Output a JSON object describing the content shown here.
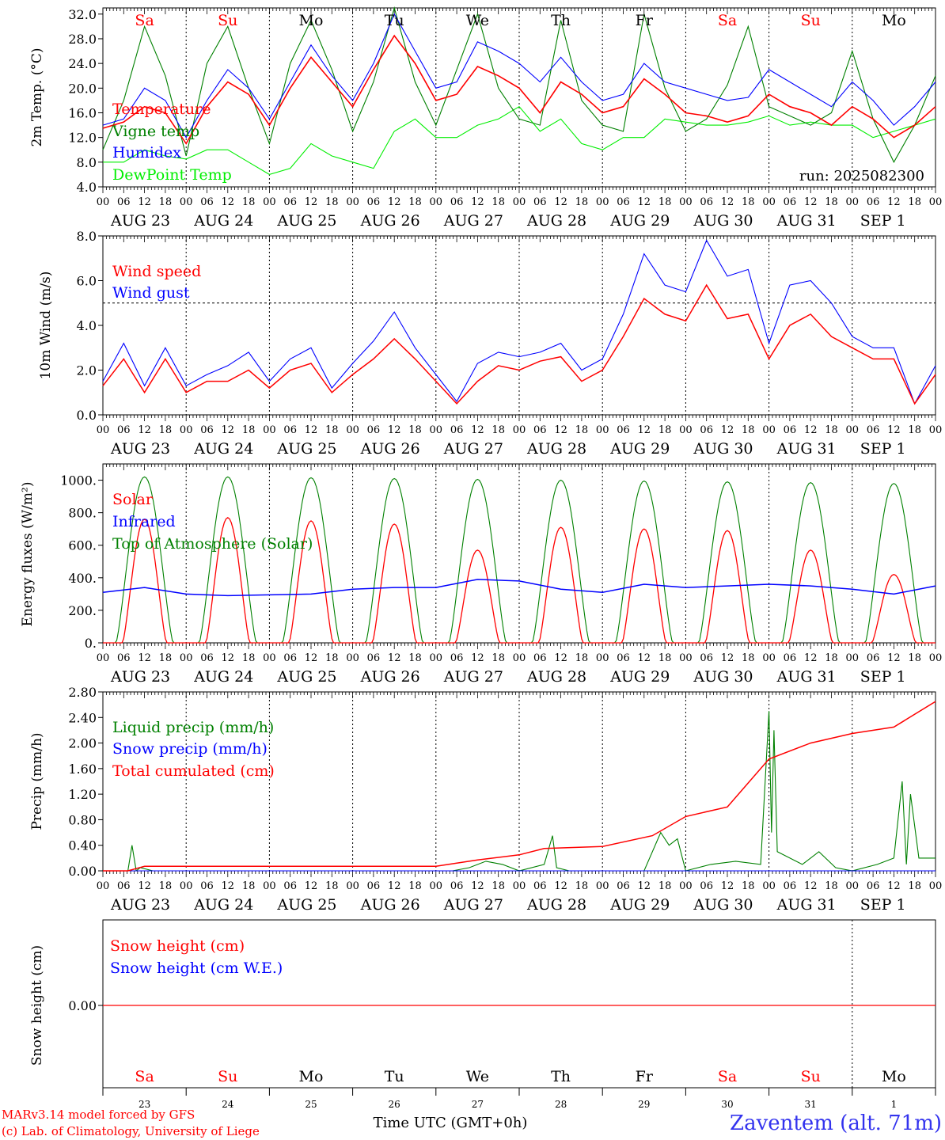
{
  "colors": {
    "temperature": "#ff0000",
    "vigne": "#008000",
    "humidex": "#0000ff",
    "dewpoint": "#00ee00",
    "wind_speed": "#ff0000",
    "wind_gust": "#0000ff",
    "solar": "#ff0000",
    "infrared": "#0000ff",
    "toa": "#008000",
    "liquid": "#008000",
    "snow_precip": "#0000ff",
    "cumul": "#ff0000",
    "snow_h": "#ff0000",
    "snow_we": "#0000ff",
    "weekend_day": "#ff0000",
    "week_day": "#000000",
    "footer_left": "#ff0000",
    "station": "#3333ee"
  },
  "days": {
    "names": [
      "Sa",
      "Su",
      "Mo",
      "Tu",
      "We",
      "Th",
      "Fr",
      "Sa",
      "Su",
      "Mo"
    ],
    "weekend": [
      true,
      true,
      false,
      false,
      false,
      false,
      false,
      true,
      true,
      false
    ],
    "dates": [
      "AUG 23",
      "AUG 24",
      "AUG 25",
      "AUG 26",
      "AUG 27",
      "AUG 28",
      "AUG 29",
      "AUG 30",
      "AUG 31",
      "SEP  1"
    ],
    "numbers": [
      "23",
      "24",
      "25",
      "26",
      "27",
      "28",
      "29",
      "30",
      "31",
      "1"
    ]
  },
  "hour_ticks": [
    "00",
    "06",
    "12",
    "18"
  ],
  "footer": {
    "model": "MARv3.14 model forced by GFS",
    "credit": "(c) Lab. of Climatology, University of Liege",
    "time_label": "Time UTC (GMT+0h)",
    "station": "Zaventem (alt. 71m)"
  },
  "chart_data": [
    {
      "type": "line",
      "ylabel": "2m Temp. (°C)",
      "ylim": [
        4.0,
        33.0
      ],
      "yticks": [
        "4.0",
        "8.0",
        "12.0",
        "16.0",
        "20.0",
        "24.0",
        "28.0",
        "32.0"
      ],
      "annotation": "run: 2025082300",
      "x_days": [
        0,
        0.25,
        0.5,
        0.75,
        1,
        1.25,
        1.5,
        1.75,
        2,
        2.25,
        2.5,
        2.75,
        3,
        3.25,
        3.5,
        3.75,
        4,
        4.25,
        4.5,
        4.75,
        5,
        5.25,
        5.5,
        5.75,
        6,
        6.25,
        6.5,
        6.75,
        7,
        7.25,
        7.5,
        7.75,
        8,
        8.25,
        8.5,
        8.75,
        9,
        9.25,
        9.5,
        9.75,
        10
      ],
      "series": [
        {
          "name": "Temperature",
          "key": "temperature",
          "values": [
            13.5,
            14.5,
            17.0,
            16.0,
            11.0,
            17.0,
            21.0,
            19.0,
            14.0,
            20.0,
            25.0,
            21.0,
            17.0,
            23.0,
            28.5,
            24.0,
            18.0,
            19.0,
            23.5,
            22.0,
            20.0,
            16.0,
            21.0,
            19.0,
            16.0,
            17.0,
            21.5,
            19.0,
            16.0,
            15.5,
            14.5,
            15.5,
            19.0,
            17.0,
            16.0,
            14.0,
            17.0,
            15.0,
            12.0,
            14.0,
            17.0
          ]
        },
        {
          "name": "Vigne temp",
          "key": "vigne",
          "values": [
            10.0,
            18.0,
            30.0,
            22.0,
            9.0,
            24.0,
            30.0,
            20.0,
            11.0,
            24.0,
            31.0,
            23.0,
            13.0,
            21.0,
            33.0,
            21.0,
            14.0,
            23.0,
            32.0,
            20.0,
            15.0,
            14.0,
            31.0,
            18.0,
            14.0,
            13.0,
            32.0,
            20.0,
            13.0,
            15.0,
            20.5,
            30.0,
            17.0,
            15.5,
            14.0,
            16.0,
            26.0,
            15.0,
            8.0,
            14.0,
            22.0
          ]
        },
        {
          "name": "Humidex",
          "key": "humidex",
          "values": [
            14.0,
            15.0,
            20.0,
            18.0,
            12.0,
            18.0,
            23.0,
            20.0,
            15.0,
            21.0,
            27.0,
            22.0,
            18.0,
            24.0,
            32.0,
            26.0,
            20.0,
            21.0,
            27.5,
            26.0,
            24.0,
            21.0,
            25.0,
            21.0,
            18.0,
            19.0,
            24.0,
            21.0,
            20.0,
            19.0,
            18.0,
            18.5,
            23.0,
            21.0,
            19.0,
            17.0,
            21.0,
            18.0,
            14.0,
            17.0,
            21.0
          ]
        },
        {
          "name": "DewPoint Temp",
          "key": "dewpoint",
          "values": [
            8.0,
            8.0,
            10.0,
            9.0,
            8.5,
            10.0,
            10.0,
            8.0,
            6.0,
            7.0,
            11.0,
            9.0,
            8.0,
            7.0,
            13.0,
            15.0,
            12.0,
            12.0,
            14.0,
            15.0,
            17.0,
            13.0,
            15.0,
            11.0,
            10.0,
            12.0,
            12.0,
            15.0,
            14.5,
            14.0,
            14.0,
            14.5,
            15.5,
            14.0,
            14.5,
            14.0,
            14.0,
            12.0,
            13.0,
            14.0,
            15.0
          ]
        }
      ]
    },
    {
      "type": "line",
      "ylabel": "10m Wind (m/s)",
      "ylim": [
        0.0,
        8.0
      ],
      "yticks": [
        "0.0",
        "2.0",
        "4.0",
        "6.0",
        "8.0"
      ],
      "reference_line": 5.0,
      "x_days": [
        0,
        0.25,
        0.5,
        0.75,
        1,
        1.25,
        1.5,
        1.75,
        2,
        2.25,
        2.5,
        2.75,
        3,
        3.25,
        3.5,
        3.75,
        4,
        4.25,
        4.5,
        4.75,
        5,
        5.25,
        5.5,
        5.75,
        6,
        6.25,
        6.5,
        6.75,
        7,
        7.25,
        7.5,
        7.75,
        8,
        8.25,
        8.5,
        8.75,
        9,
        9.25,
        9.5,
        9.75,
        10
      ],
      "series": [
        {
          "name": "Wind speed",
          "key": "wind_speed",
          "values": [
            1.3,
            2.5,
            1.0,
            2.5,
            1.0,
            1.5,
            1.5,
            2.0,
            1.2,
            2.0,
            2.3,
            1.0,
            1.8,
            2.5,
            3.4,
            2.5,
            1.5,
            0.5,
            1.5,
            2.2,
            2.0,
            2.4,
            2.6,
            1.5,
            2.0,
            3.5,
            5.2,
            4.5,
            4.2,
            5.8,
            4.3,
            4.5,
            2.5,
            4.0,
            4.5,
            3.5,
            3.0,
            2.5,
            2.5,
            0.5,
            1.8
          ]
        },
        {
          "name": "Wind gust",
          "key": "wind_gust",
          "values": [
            1.5,
            3.2,
            1.3,
            3.0,
            1.3,
            1.8,
            2.2,
            2.8,
            1.5,
            2.5,
            3.0,
            1.2,
            2.3,
            3.3,
            4.6,
            3.0,
            1.8,
            0.6,
            2.3,
            2.8,
            2.6,
            2.8,
            3.2,
            2.0,
            2.5,
            4.5,
            7.2,
            5.8,
            5.5,
            7.8,
            6.2,
            6.5,
            3.2,
            5.8,
            6.0,
            5.0,
            3.5,
            3.0,
            3.0,
            0.5,
            2.2
          ]
        }
      ]
    },
    {
      "type": "line",
      "ylabel": "Energy fluxes (W/m²)",
      "ylim": [
        0,
        1100
      ],
      "yticks": [
        "0.",
        "200.",
        "400.",
        "600.",
        "800.",
        "1000."
      ],
      "toa_peaks": [
        1020,
        1020,
        1015,
        1010,
        1005,
        1000,
        995,
        990,
        985,
        980
      ],
      "solar_peaks": [
        760,
        770,
        750,
        730,
        570,
        710,
        700,
        690,
        570,
        420
      ],
      "infrared_x_days": [
        0,
        0.5,
        1,
        1.5,
        2,
        2.5,
        3,
        3.5,
        4,
        4.5,
        5,
        5.5,
        6,
        6.5,
        7,
        7.5,
        8,
        8.5,
        9,
        9.5,
        10
      ],
      "infrared_values": [
        310,
        340,
        300,
        290,
        295,
        300,
        330,
        340,
        340,
        390,
        380,
        330,
        310,
        360,
        340,
        350,
        360,
        350,
        330,
        300,
        350
      ],
      "series": [
        {
          "name": "Solar",
          "key": "solar"
        },
        {
          "name": "Infrared",
          "key": "infrared"
        },
        {
          "name": "Top of Atmosphere (Solar)",
          "key": "toa"
        }
      ]
    },
    {
      "type": "line",
      "ylabel": "Precip (mm/h)",
      "ylim": [
        0.0,
        2.8
      ],
      "yticks": [
        "0.00",
        "0.40",
        "0.80",
        "1.20",
        "1.60",
        "2.00",
        "2.40",
        "2.80"
      ],
      "cumul_x_days": [
        0,
        0.3,
        0.5,
        4,
        4.5,
        5,
        5.3,
        6,
        6.6,
        7,
        7.5,
        8,
        8.5,
        9,
        9.5,
        10
      ],
      "cumul_values": [
        0.0,
        0.0,
        0.07,
        0.07,
        0.17,
        0.25,
        0.35,
        0.38,
        0.55,
        0.85,
        1.0,
        1.75,
        2.0,
        2.15,
        2.25,
        2.65
      ],
      "liquid_x_days": [
        0,
        0.3,
        0.35,
        0.4,
        0.45,
        0.6,
        4.2,
        4.4,
        4.6,
        4.8,
        5.0,
        5.3,
        5.4,
        5.45,
        5.6,
        6.5,
        6.7,
        6.8,
        6.9,
        7.0,
        7.3,
        7.6,
        7.9,
        8.0,
        8.03,
        8.06,
        8.1,
        8.4,
        8.6,
        8.8,
        9.0,
        9.3,
        9.5,
        9.6,
        9.65,
        9.7,
        9.8,
        10
      ],
      "liquid_values": [
        0.0,
        0.0,
        0.4,
        0.0,
        0.05,
        0.0,
        0.0,
        0.05,
        0.15,
        0.1,
        0.0,
        0.1,
        0.55,
        0.05,
        0.0,
        0.0,
        0.6,
        0.4,
        0.5,
        0.0,
        0.1,
        0.15,
        0.1,
        2.5,
        0.6,
        2.2,
        0.3,
        0.1,
        0.3,
        0.05,
        0.0,
        0.1,
        0.2,
        1.4,
        0.1,
        1.2,
        0.2,
        0.2
      ],
      "series": [
        {
          "name": "Liquid precip (mm/h)",
          "key": "liquid"
        },
        {
          "name": "Snow precip (mm/h)",
          "key": "snow_precip"
        },
        {
          "name": "Total cumulated (cm)",
          "key": "cumul"
        }
      ]
    },
    {
      "type": "line",
      "ylabel": "Snow height (cm)",
      "yticks": [
        "0.00"
      ],
      "values": [
        0.0
      ],
      "series": [
        {
          "name": "Snow height (cm)",
          "key": "snow_h"
        },
        {
          "name": "Snow height (cm W.E.)",
          "key": "snow_we"
        }
      ]
    }
  ]
}
